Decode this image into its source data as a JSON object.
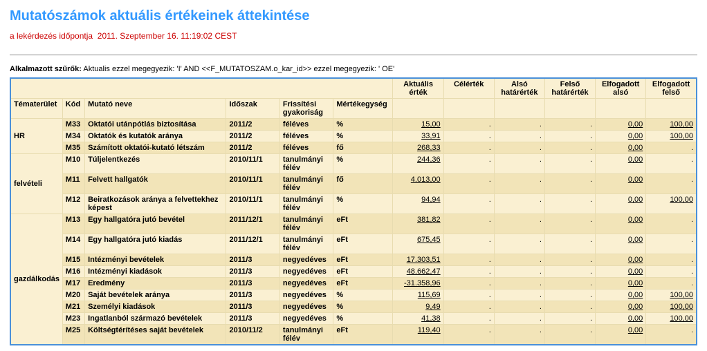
{
  "page": {
    "title": "Mutatószámok aktuális értékeinek áttekintése",
    "subtitle_prefix": "a lekérdezés időpontja",
    "subtitle_date": "2011. Szeptember 16. 11:19:02 CEST",
    "filters_label": "Alkalmazott szűrők:",
    "filters_text": "Aktualis ezzel megegyezik: 'I' AND <<F_MUTATOSZAM.o_kar_id>> ezzel megegyezik: ' OE'"
  },
  "columns": {
    "tema": "Tématerület",
    "kod": "Kód",
    "nev": "Mutató neve",
    "idoszak": "Időszak",
    "frissites": "Frissítési gyakoriság",
    "mertek": "Mértékegység",
    "aktualis": "Aktuális érték",
    "cel": "Célérték",
    "also": "Alsó határérték",
    "felso": "Felső határérték",
    "elf_also": "Elfogadott alsó",
    "elf_felso": "Elfogadott felső"
  },
  "groups": [
    {
      "name": "HR",
      "rows": [
        {
          "kod": "M33",
          "nev": "Oktatói utánpótlás biztosítása",
          "idoszak": "2011/2",
          "frq": "féléves",
          "me": "%",
          "akt": "15,00",
          "cel": ".",
          "also": ".",
          "felso": ".",
          "ea": "0,00",
          "ef": "100,00",
          "zebra": "dark"
        },
        {
          "kod": "M34",
          "nev": "Oktatók és kutatók aránya",
          "idoszak": "2011/2",
          "frq": "féléves",
          "me": "%",
          "akt": "33,91",
          "cel": ".",
          "also": ".",
          "felso": ".",
          "ea": "0,00",
          "ef": "100,00",
          "zebra": "light"
        },
        {
          "kod": "M35",
          "nev": "Számított oktatói-kutató létszám",
          "idoszak": "2011/2",
          "frq": "féléves",
          "me": "fő",
          "akt": "268,33",
          "cel": ".",
          "also": ".",
          "felso": ".",
          "ea": "0,00",
          "ef": ".",
          "zebra": "dark"
        }
      ]
    },
    {
      "name": "felvételi",
      "rows": [
        {
          "kod": "M10",
          "nev": "Túljelentkezés",
          "idoszak": "2010/11/1",
          "frq": "tanulmányi félév",
          "me": "%",
          "akt": "244,36",
          "cel": ".",
          "also": ".",
          "felso": ".",
          "ea": "0,00",
          "ef": ".",
          "zebra": "light"
        },
        {
          "kod": "M11",
          "nev": "Felvett hallgatók",
          "idoszak": "2010/11/1",
          "frq": "tanulmányi félév",
          "me": "fő",
          "akt": "4.013,00",
          "cel": ".",
          "also": ".",
          "felso": ".",
          "ea": "0,00",
          "ef": ".",
          "zebra": "dark"
        },
        {
          "kod": "M12",
          "nev": "Beiratkozások aránya a felvettekhez képest",
          "idoszak": "2010/11/1",
          "frq": "tanulmányi félév",
          "me": "%",
          "akt": "94,94",
          "cel": ".",
          "also": ".",
          "felso": ".",
          "ea": "0,00",
          "ef": "100,00",
          "zebra": "light"
        }
      ]
    },
    {
      "name": "gazdálkodás",
      "rows": [
        {
          "kod": "M13",
          "nev": "Egy hallgatóra jutó bevétel",
          "idoszak": "2011/12/1",
          "frq": "tanulmányi félév",
          "me": "eFt",
          "akt": "381,82",
          "cel": ".",
          "also": ".",
          "felso": ".",
          "ea": "0,00",
          "ef": ".",
          "zebra": "dark"
        },
        {
          "kod": "M14",
          "nev": "Egy hallgatóra jutó kiadás",
          "idoszak": "2011/12/1",
          "frq": "tanulmányi félév",
          "me": "eFt",
          "akt": "675,45",
          "cel": ".",
          "also": ".",
          "felso": ".",
          "ea": "0,00",
          "ef": ".",
          "zebra": "light"
        },
        {
          "kod": "M15",
          "nev": "Intézményi bevételek",
          "idoszak": "2011/3",
          "frq": "negyedéves",
          "me": "eFt",
          "akt": "17.303,51",
          "cel": ".",
          "also": ".",
          "felso": ".",
          "ea": "0,00",
          "ef": ".",
          "zebra": "dark"
        },
        {
          "kod": "M16",
          "nev": "Intézményi kiadások",
          "idoszak": "2011/3",
          "frq": "negyedéves",
          "me": "eFt",
          "akt": "48.662,47",
          "cel": ".",
          "also": ".",
          "felso": ".",
          "ea": "0,00",
          "ef": ".",
          "zebra": "light"
        },
        {
          "kod": "M17",
          "nev": "Eredmény",
          "idoszak": "2011/3",
          "frq": "negyedéves",
          "me": "eFt",
          "akt": "-31.358,96",
          "cel": ".",
          "also": ".",
          "felso": ".",
          "ea": "0,00",
          "ef": ".",
          "zebra": "dark"
        },
        {
          "kod": "M20",
          "nev": "Saját bevételek aránya",
          "idoszak": "2011/3",
          "frq": "negyedéves",
          "me": "%",
          "akt": "115,69",
          "cel": ".",
          "also": ".",
          "felso": ".",
          "ea": "0,00",
          "ef": "100,00",
          "zebra": "light"
        },
        {
          "kod": "M21",
          "nev": "Személyi kiadások",
          "idoszak": "2011/3",
          "frq": "negyedéves",
          "me": "%",
          "akt": "9,49",
          "cel": ".",
          "also": ".",
          "felso": ".",
          "ea": "0,00",
          "ef": "100,00",
          "zebra": "dark"
        },
        {
          "kod": "M23",
          "nev": "Ingatlanból származó bevételek",
          "idoszak": "2011/3",
          "frq": "negyedéves",
          "me": "%",
          "akt": "41,38",
          "cel": ".",
          "also": ".",
          "felso": ".",
          "ea": "0,00",
          "ef": "100,00",
          "zebra": "light"
        },
        {
          "kod": "M25",
          "nev": "Költségtérítéses saját bevételek",
          "idoszak": "2010/11/2",
          "frq": "tanulmányi félév",
          "me": "eFt",
          "akt": "119,40",
          "cel": ".",
          "also": ".",
          "felso": ".",
          "ea": "0,00",
          "ef": ".",
          "zebra": "dark"
        }
      ]
    }
  ]
}
